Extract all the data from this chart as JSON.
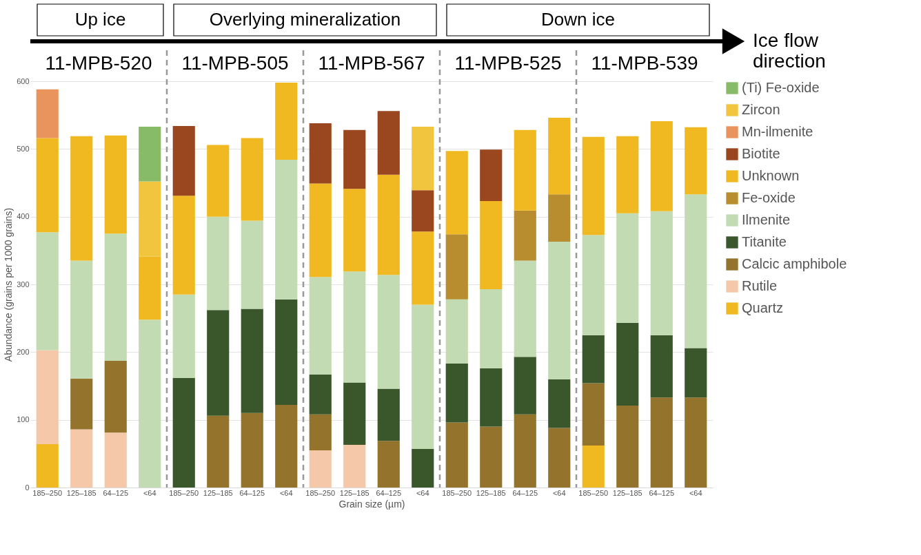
{
  "chart_data": {
    "type": "bar",
    "stacked": true,
    "xlabel": "Grain size (µm)",
    "ylabel": "Abundance (grains per 1000 grains)",
    "categories": [
      "185–250",
      "125–185",
      "64–125",
      "<64",
      "185–250",
      "125–185",
      "64–125",
      "<64",
      "185–250",
      "125–185",
      "64–125",
      "<64",
      "185–250",
      "125–185",
      "64–125",
      "<64",
      "185–250",
      "125–185",
      "64–125",
      "<64"
    ],
    "series": [
      {
        "name": "Quartz",
        "color": "#f0b922",
        "values": [
          64,
          null,
          null,
          null,
          null,
          null,
          null,
          null,
          null,
          null,
          null,
          null,
          null,
          null,
          null,
          null,
          62,
          null,
          null,
          null
        ]
      },
      {
        "name": "Rutile",
        "color": "#f4c8a9",
        "values": [
          139,
          86,
          81,
          null,
          null,
          null,
          null,
          null,
          55,
          63,
          null,
          null,
          null,
          null,
          null,
          null,
          null,
          null,
          null,
          null
        ]
      },
      {
        "name": "Calcic amphibole",
        "color": "#94742c",
        "values": [
          null,
          75,
          106,
          null,
          null,
          106,
          110,
          122,
          53,
          null,
          69,
          null,
          96,
          90,
          108,
          88,
          92,
          121,
          133,
          133
        ]
      },
      {
        "name": "Titanite",
        "color": "#3a562b",
        "values": [
          null,
          null,
          null,
          null,
          162,
          156,
          154,
          156,
          59,
          92,
          77,
          57,
          87,
          86,
          85,
          72,
          71,
          122,
          92,
          73
        ]
      },
      {
        "name": "Ilmenite",
        "color": "#c3dbb3",
        "values": [
          174,
          174,
          188,
          248,
          123,
          138,
          130,
          206,
          144,
          164,
          168,
          213,
          95,
          117,
          142,
          203,
          148,
          162,
          183,
          227
        ]
      },
      {
        "name": "Fe-oxide",
        "color": "#b88d30",
        "values": [
          null,
          null,
          null,
          null,
          null,
          null,
          null,
          null,
          null,
          null,
          null,
          null,
          96,
          null,
          74,
          70,
          null,
          null,
          null,
          null
        ]
      },
      {
        "name": "Unknown",
        "color": "#f0b922",
        "values": [
          139,
          184,
          145,
          93,
          146,
          106,
          122,
          114,
          138,
          122,
          148,
          108,
          123,
          130,
          119,
          113,
          145,
          114,
          133,
          99
        ]
      },
      {
        "name": "Biotite",
        "color": "#9a4720",
        "values": [
          null,
          null,
          null,
          null,
          103,
          null,
          null,
          null,
          89,
          87,
          94,
          61,
          null,
          76,
          null,
          null,
          null,
          null,
          null,
          null
        ]
      },
      {
        "name": "Mn-ilmenite",
        "color": "#e8945c",
        "values": [
          72,
          null,
          null,
          null,
          null,
          null,
          null,
          null,
          null,
          null,
          null,
          null,
          null,
          null,
          null,
          null,
          null,
          null,
          null,
          null
        ]
      },
      {
        "name": "Zircon",
        "color": "#f1c53e",
        "values": [
          null,
          null,
          null,
          111,
          null,
          null,
          null,
          null,
          null,
          null,
          null,
          94,
          null,
          null,
          null,
          null,
          null,
          null,
          null,
          null
        ]
      },
      {
        "name": "(Ti) Fe-oxide",
        "color": "#88bb68",
        "values": [
          null,
          null,
          null,
          81,
          null,
          null,
          null,
          null,
          null,
          null,
          null,
          null,
          null,
          null,
          null,
          null,
          null,
          null,
          null,
          null
        ]
      }
    ],
    "ylim": [
      0,
      600
    ],
    "yticks": [
      0,
      100,
      200,
      300,
      400,
      500,
      600
    ],
    "grid": "y",
    "legend": "right",
    "annotations": [
      "Up ice",
      "Overlying mineralization",
      "Down ice",
      "Ice flow\ndirection",
      "11-MPB-520",
      "11-MPB-505",
      "11-MPB-567",
      "11-MPB-525",
      "11-MPB-539"
    ]
  }
}
